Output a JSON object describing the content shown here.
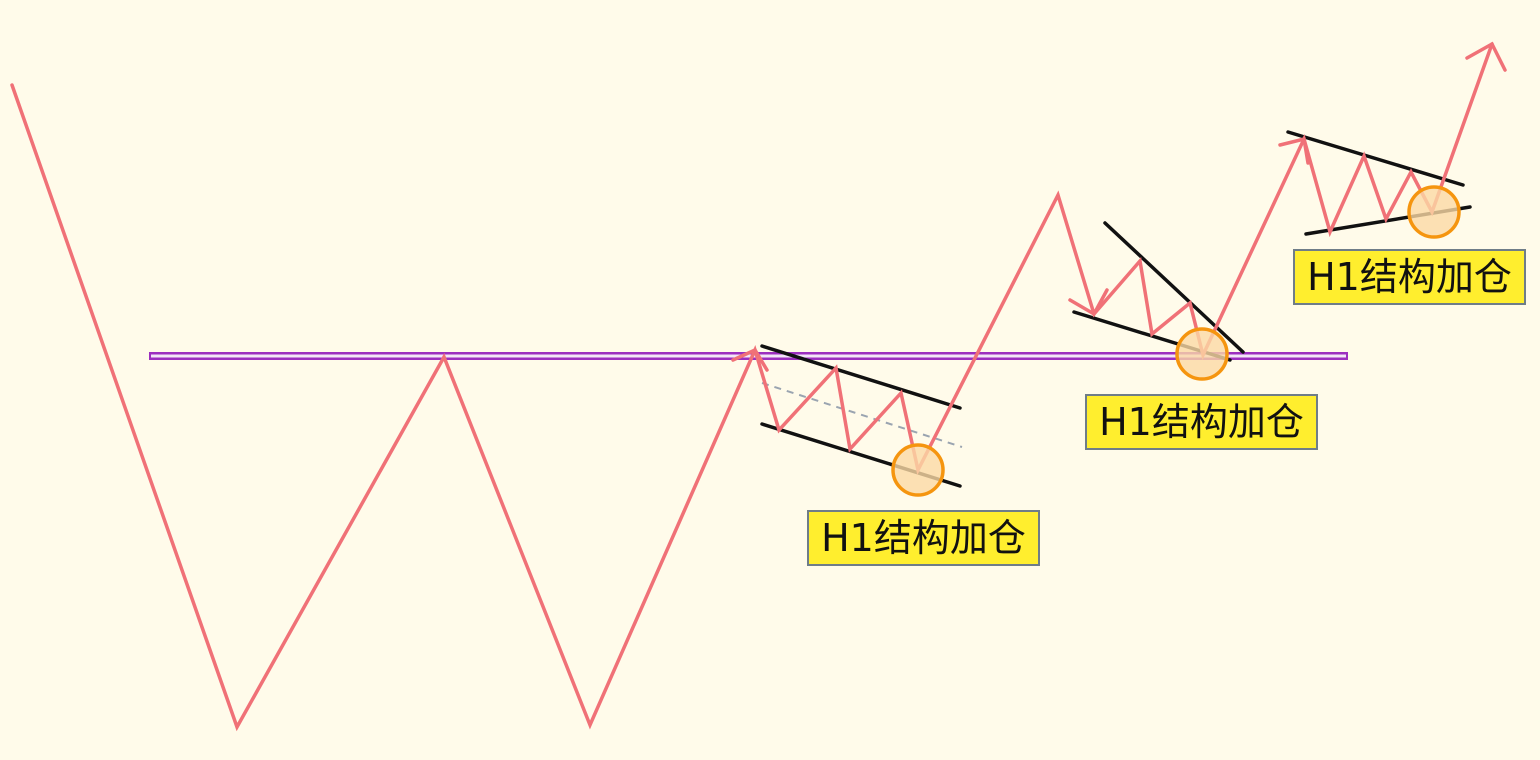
{
  "colors": {
    "background": "#fffbea",
    "price_path": "#f07177",
    "neckline": "#9c2fbf",
    "channel_lines": "#111111",
    "dashed_midline": "#9aa4b0",
    "entry_circle_stroke": "#f5950f",
    "entry_circle_fill": "#fbd9a5",
    "label_background": "#ffee2e",
    "label_border": "#6f7d88"
  },
  "labels": [
    {
      "text": "H1结构加仓"
    },
    {
      "text": "H1结构加仓"
    },
    {
      "text": "H1结构加仓"
    }
  ],
  "icons": {
    "path_end": "arrow-head-icon",
    "entry_marker": "circle-marker-icon"
  }
}
